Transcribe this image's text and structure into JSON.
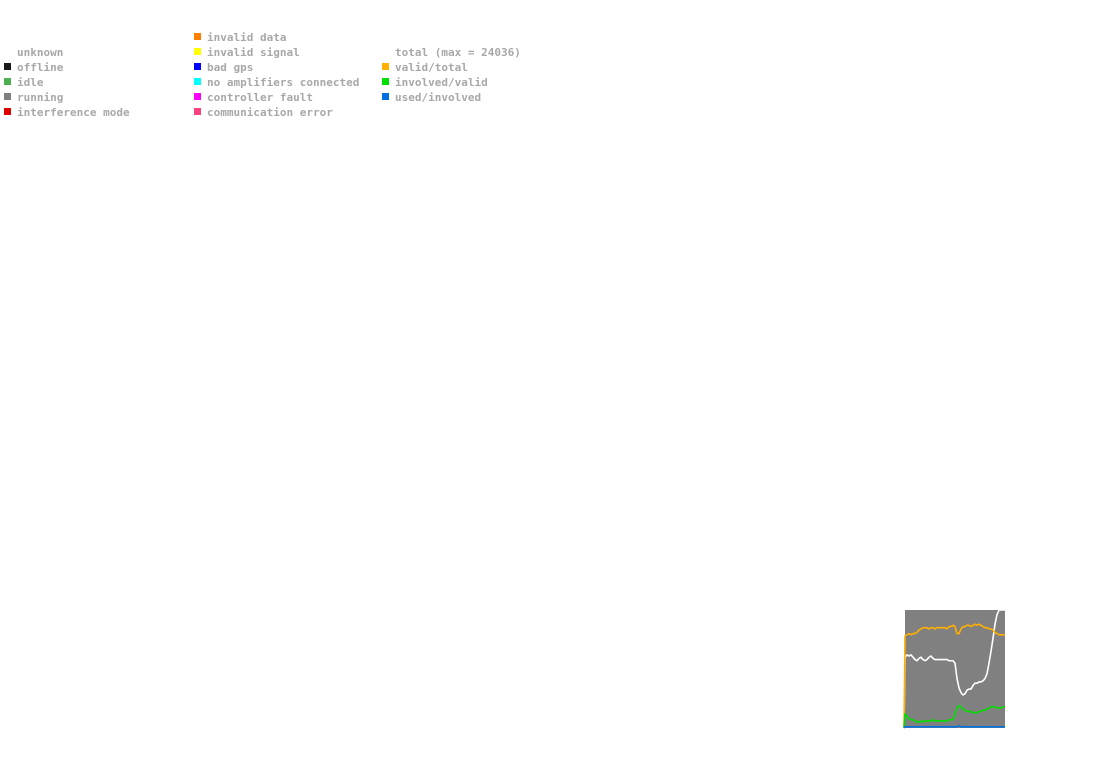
{
  "legend": {
    "status": [
      {
        "label": "unknown",
        "color": ""
      },
      {
        "label": "offline",
        "color": "#1a1a1a"
      },
      {
        "label": "idle",
        "color": "#4caf50"
      },
      {
        "label": "running",
        "color": "#808080"
      },
      {
        "label": "interference mode",
        "color": "#e00000"
      }
    ],
    "errors": [
      {
        "label": "invalid data",
        "color": "#ff7f00"
      },
      {
        "label": "invalid signal",
        "color": "#ffff00"
      },
      {
        "label": "bad gps",
        "color": "#0000ff"
      },
      {
        "label": "no amplifiers connected",
        "color": "#00ffff"
      },
      {
        "label": "controller fault",
        "color": "#ff00ff"
      },
      {
        "label": "communication error",
        "color": "#ff4080"
      }
    ],
    "ratios": [
      {
        "label": "total (max = 24036)",
        "color": ""
      },
      {
        "label": "valid/total",
        "color": "#ffb000"
      },
      {
        "label": "involved/valid",
        "color": "#00e000"
      },
      {
        "label": "used/involved",
        "color": "#0070e0"
      }
    ]
  },
  "chart_data": {
    "type": "line",
    "background_color": "#808080",
    "grid": false,
    "ylim": [
      0,
      1
    ],
    "x": [
      0,
      1,
      2,
      3,
      4,
      5,
      6,
      7,
      8,
      9,
      10,
      11,
      12,
      13,
      14,
      15,
      16,
      17,
      18,
      19,
      20,
      21,
      22,
      23,
      24,
      25,
      26,
      27,
      28,
      29,
      30,
      31,
      32,
      33,
      34,
      35,
      36,
      37,
      38,
      39,
      40,
      41,
      42,
      43,
      44,
      45,
      46,
      47,
      48,
      49,
      50
    ],
    "series": [
      {
        "name": "total (max = 24036)",
        "color": "#ffffff",
        "values": [
          0.6,
          0.62,
          0.61,
          0.62,
          0.6,
          0.58,
          0.57,
          0.59,
          0.6,
          0.58,
          0.57,
          0.58,
          0.6,
          0.61,
          0.59,
          0.58,
          0.58,
          0.58,
          0.58,
          0.58,
          0.58,
          0.58,
          0.57,
          0.57,
          0.57,
          0.55,
          0.42,
          0.34,
          0.3,
          0.28,
          0.29,
          0.32,
          0.33,
          0.33,
          0.36,
          0.38,
          0.38,
          0.39,
          0.39,
          0.4,
          0.42,
          0.46,
          0.55,
          0.65,
          0.76,
          0.88,
          0.96,
          1.0,
          1.0,
          1.0,
          1.0
        ]
      },
      {
        "name": "valid/total",
        "color": "#ffb000",
        "values": [
          0.78,
          0.79,
          0.8,
          0.79,
          0.8,
          0.8,
          0.81,
          0.83,
          0.84,
          0.85,
          0.85,
          0.85,
          0.84,
          0.85,
          0.85,
          0.84,
          0.85,
          0.85,
          0.85,
          0.85,
          0.85,
          0.84,
          0.86,
          0.86,
          0.87,
          0.86,
          0.8,
          0.8,
          0.84,
          0.86,
          0.86,
          0.87,
          0.87,
          0.86,
          0.87,
          0.88,
          0.87,
          0.88,
          0.87,
          0.86,
          0.85,
          0.85,
          0.84,
          0.84,
          0.83,
          0.81,
          0.8,
          0.79,
          0.79,
          0.79,
          0.79
        ]
      },
      {
        "name": "involved/valid",
        "color": "#00e000",
        "values": [
          0.12,
          0.1,
          0.08,
          0.07,
          0.07,
          0.06,
          0.05,
          0.05,
          0.06,
          0.05,
          0.06,
          0.06,
          0.06,
          0.06,
          0.07,
          0.06,
          0.06,
          0.06,
          0.06,
          0.06,
          0.06,
          0.06,
          0.07,
          0.07,
          0.07,
          0.12,
          0.17,
          0.19,
          0.18,
          0.16,
          0.15,
          0.14,
          0.14,
          0.14,
          0.13,
          0.13,
          0.13,
          0.14,
          0.14,
          0.15,
          0.15,
          0.16,
          0.17,
          0.18,
          0.18,
          0.18,
          0.17,
          0.17,
          0.17,
          0.18,
          0.18
        ]
      },
      {
        "name": "used/involved",
        "color": "#0070e0",
        "values": [
          0.01,
          0.01,
          0.01,
          0.01,
          0.01,
          0.01,
          0.01,
          0.01,
          0.01,
          0.01,
          0.01,
          0.01,
          0.01,
          0.01,
          0.01,
          0.01,
          0.01,
          0.01,
          0.01,
          0.01,
          0.01,
          0.01,
          0.01,
          0.01,
          0.01,
          0.01,
          0.01,
          0.02,
          0.01,
          0.01,
          0.01,
          0.01,
          0.01,
          0.01,
          0.01,
          0.01,
          0.01,
          0.01,
          0.01,
          0.01,
          0.01,
          0.01,
          0.01,
          0.01,
          0.01,
          0.01,
          0.01,
          0.01,
          0.01,
          0.01,
          0.01
        ]
      }
    ]
  }
}
